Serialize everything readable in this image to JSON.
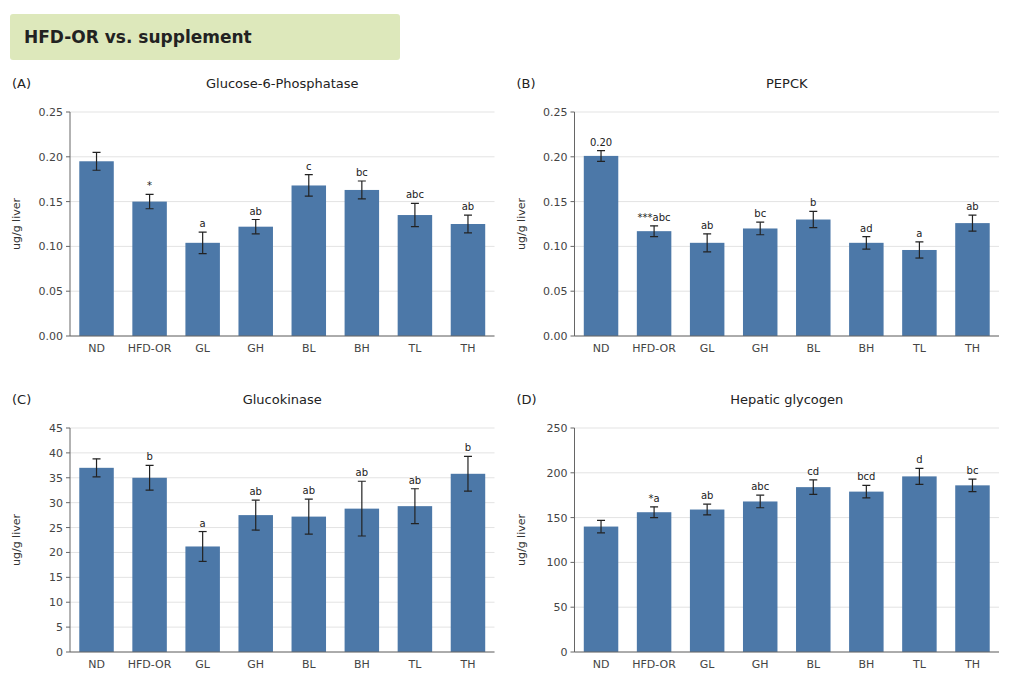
{
  "title": "HFD-OR vs. supplement",
  "color": "#dde8bb",
  "chart_data": [
    {
      "type": "bar",
      "title": "Glucose-6-Phosphatase",
      "subtitle": "(A)",
      "ylabel": "ug/g liver",
      "categories": [
        "ND",
        "HFD-OR",
        "GL",
        "GH",
        "BL",
        "BH",
        "TL",
        "TH"
      ],
      "values": [
        0.195,
        0.15,
        0.104,
        0.122,
        0.168,
        0.163,
        0.135,
        0.125
      ],
      "errors": [
        0.01,
        0.008,
        0.012,
        0.008,
        0.012,
        0.01,
        0.013,
        0.01
      ],
      "annotations": [
        null,
        "*",
        "a",
        "ab",
        "c",
        "bc",
        "abc",
        "ab"
      ],
      "ylim": [
        0.0,
        0.25
      ],
      "yticks": [
        {
          "value": 0.0,
          "label": "0.00"
        },
        0.05,
        {
          "value": 0.1,
          "label": "0.10"
        },
        0.15,
        {
          "value": 0.2,
          "label": "0.20"
        },
        0.25
      ]
    },
    {
      "type": "bar",
      "title": "PEPCK",
      "subtitle": "(B)",
      "ylabel": "ug/g liver",
      "categories": [
        "ND",
        "HFD-OR",
        "GL",
        "GH",
        "BL",
        "BH",
        "TL",
        "TH"
      ],
      "values": [
        0.201,
        0.117,
        0.104,
        0.12,
        0.13,
        0.104,
        0.096,
        0.126
      ],
      "errors": [
        0.006,
        0.006,
        0.01,
        0.007,
        0.009,
        0.007,
        0.009,
        0.009
      ],
      "annotations": [
        "0.20",
        "***abc",
        "ab",
        "bc",
        "b",
        "ad",
        "a",
        "ab"
      ],
      "ylim": [
        0.0,
        0.25
      ],
      "yticks": [
        {
          "value": 0.0,
          "label": "0.00"
        },
        0.05,
        {
          "value": 0.1,
          "label": "0.10"
        },
        0.15,
        {
          "value": 0.2,
          "label": "0.20"
        },
        0.25
      ]
    },
    {
      "type": "bar",
      "title": "Glucokinase",
      "subtitle": "(C)",
      "ylabel": "ug/g liver",
      "categories": [
        "ND",
        "HFD-OR",
        "GL",
        "GH",
        "BL",
        "BH",
        "TL",
        "TH"
      ],
      "values": [
        37.0,
        35.0,
        21.2,
        27.5,
        27.2,
        28.8,
        29.3,
        35.8
      ],
      "errors": [
        1.8,
        2.5,
        3.0,
        3.0,
        3.5,
        5.5,
        3.5,
        3.5
      ],
      "annotations": [
        null,
        "b",
        "a",
        "ab",
        "ab",
        "ab",
        "ab",
        "b"
      ],
      "ylim": [
        0,
        45
      ],
      "yticks": [
        0,
        5,
        10,
        15,
        20,
        25,
        30,
        35,
        40,
        45
      ]
    },
    {
      "type": "bar",
      "title": "Hepatic glycogen",
      "subtitle": "(D)",
      "ylabel": "ug/g liver",
      "categories": [
        "ND",
        "HFD-OR",
        "GL",
        "GH",
        "BL",
        "BH",
        "TL",
        "TH"
      ],
      "values": [
        140,
        156,
        159,
        168,
        184,
        179,
        196,
        186
      ],
      "errors": [
        7,
        6,
        6,
        7,
        8,
        7,
        9,
        7
      ],
      "annotations": [
        null,
        "*a",
        "ab",
        "abc",
        "cd",
        "bcd",
        "d",
        "bc"
      ],
      "ylim": [
        0,
        250
      ],
      "yticks": [
        0,
        50,
        100,
        150,
        200,
        250
      ]
    }
  ]
}
